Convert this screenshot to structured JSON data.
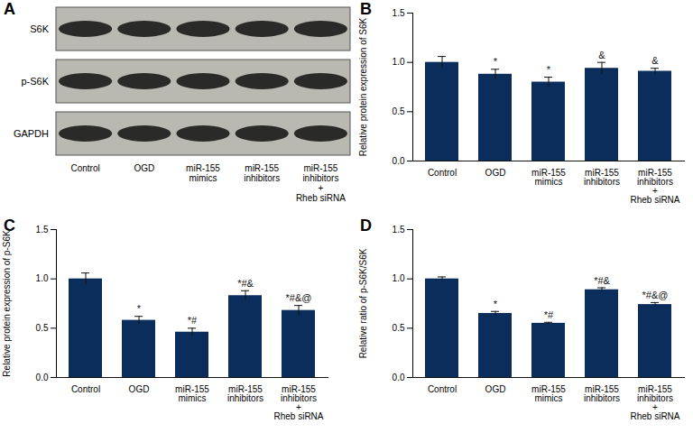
{
  "blot": {
    "title": "A",
    "rows": [
      "S6K",
      "p-S6K",
      "GAPDH"
    ],
    "lanes": [
      "Control",
      "OGD",
      "miR-155\nmimics",
      "miR-155\ninhibitors",
      "miR-155\ninhibitors\n+\nRheb siRNA"
    ]
  },
  "chart_data": [
    {
      "type": "bar",
      "title": "B",
      "y_label": "Relative protein expression of S6K",
      "categories": [
        "Control",
        "OGD",
        "miR-155\nmimics",
        "miR-155\ninhibitors",
        "miR-155\ninhibitors\n+\nRheb siRNA"
      ],
      "values": [
        1.0,
        0.88,
        0.8,
        0.94,
        0.91
      ],
      "errors": [
        0.06,
        0.05,
        0.05,
        0.06,
        0.03
      ],
      "annotations": [
        null,
        "*",
        "*",
        "&",
        "&"
      ],
      "color": "#0b2d5b",
      "ylim": [
        0,
        1.5
      ],
      "yticks": [
        {
          "value": 0,
          "label": "0.0"
        },
        {
          "value": 0.5,
          "label": "0.5"
        },
        {
          "value": 1,
          "label": "1.0"
        },
        {
          "value": 1.5,
          "label": "1.5"
        }
      ]
    },
    {
      "type": "bar",
      "title": "C",
      "y_label": "Relative protein expression of p-S6K",
      "categories": [
        "Control",
        "OGD",
        "miR-155\nmimics",
        "miR-155\ninhibitors",
        "miR-155\ninhibitors\n+\nRheb siRNA"
      ],
      "values": [
        1.0,
        0.58,
        0.46,
        0.83,
        0.68
      ],
      "errors": [
        0.06,
        0.04,
        0.04,
        0.05,
        0.05
      ],
      "annotations": [
        null,
        "*",
        "*#",
        "*#&",
        "*#&@"
      ],
      "color": "#0b2d5b",
      "ylim": [
        0,
        1.5
      ],
      "yticks": [
        {
          "value": 0,
          "label": "0.0"
        },
        {
          "value": 0.5,
          "label": "0.5"
        },
        {
          "value": 1,
          "label": "1.0"
        },
        {
          "value": 1.5,
          "label": "1.5"
        }
      ]
    },
    {
      "type": "bar",
      "title": "D",
      "y_label": "Relative ratio of p-S6K/S6K",
      "categories": [
        "Control",
        "OGD",
        "miR-155\nmimics",
        "miR-155\ninhibitors",
        "miR-155\ninhibitors\n+\nRheb siRNA"
      ],
      "values": [
        1.0,
        0.65,
        0.55,
        0.89,
        0.74
      ],
      "errors": [
        0.02,
        0.02,
        0.01,
        0.02,
        0.02
      ],
      "annotations": [
        null,
        "*",
        "*#",
        "*#&",
        "*#&@"
      ],
      "color": "#0b2d5b",
      "ylim": [
        0,
        1.5
      ],
      "yticks": [
        {
          "value": 0,
          "label": "0.0"
        },
        {
          "value": 0.5,
          "label": "0.5"
        },
        {
          "value": 1,
          "label": "1.0"
        },
        {
          "value": 1.5,
          "label": "1.5"
        }
      ]
    }
  ]
}
